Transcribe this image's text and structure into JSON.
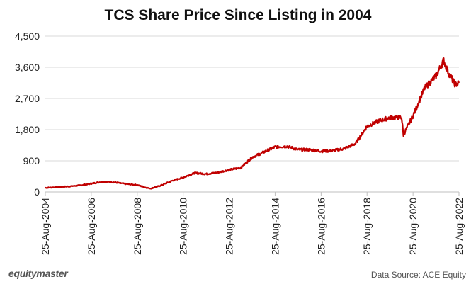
{
  "chart_data": {
    "type": "line",
    "title": "TCS Share Price Since Listing in 2004",
    "xlabel": "",
    "ylabel": "",
    "ylim": [
      0,
      4500
    ],
    "yticks": [
      "0",
      "900",
      "1,800",
      "2,700",
      "3,600",
      "4,500"
    ],
    "ytick_values": [
      0,
      900,
      1800,
      2700,
      3600,
      4500
    ],
    "xlim": [
      "2004-08-25",
      "2022-08-25"
    ],
    "xticks": [
      "25-Aug-2004",
      "25-Aug-2006",
      "25-Aug-2008",
      "25-Aug-2010",
      "25-Aug-2012",
      "25-Aug-2014",
      "25-Aug-2016",
      "25-Aug-2018",
      "25-Aug-2020",
      "25-Aug-2022"
    ],
    "grid": "horizontal",
    "series": [
      {
        "color": "#c00000",
        "x": [
          "2004-08-25",
          "2005-02-25",
          "2005-08-25",
          "2006-02-25",
          "2006-08-25",
          "2007-02-25",
          "2007-08-25",
          "2008-02-25",
          "2008-08-25",
          "2009-01-25",
          "2009-03-25",
          "2009-08-25",
          "2010-02-25",
          "2010-08-25",
          "2011-02-25",
          "2011-08-25",
          "2012-02-25",
          "2012-08-25",
          "2013-02-25",
          "2013-08-25",
          "2014-02-25",
          "2014-08-25",
          "2015-02-25",
          "2015-08-25",
          "2016-02-25",
          "2016-08-25",
          "2017-02-25",
          "2017-08-25",
          "2018-02-25",
          "2018-08-25",
          "2019-02-25",
          "2019-08-25",
          "2020-02-25",
          "2020-03-25",
          "2020-08-25",
          "2021-02-25",
          "2021-08-25",
          "2021-12-25",
          "2022-02-25",
          "2022-06-25",
          "2022-08-25"
        ],
        "values": [
          120,
          140,
          160,
          190,
          240,
          300,
          280,
          230,
          200,
          120,
          100,
          180,
          320,
          420,
          550,
          520,
          560,
          640,
          700,
          1000,
          1150,
          1300,
          1320,
          1220,
          1220,
          1180,
          1190,
          1250,
          1400,
          1900,
          2050,
          2150,
          2150,
          1650,
          2200,
          3000,
          3350,
          3800,
          3500,
          3100,
          3150
        ]
      }
    ]
  },
  "footer": {
    "brand": "equitymaster",
    "source": "Data Source: ACE Equity"
  }
}
